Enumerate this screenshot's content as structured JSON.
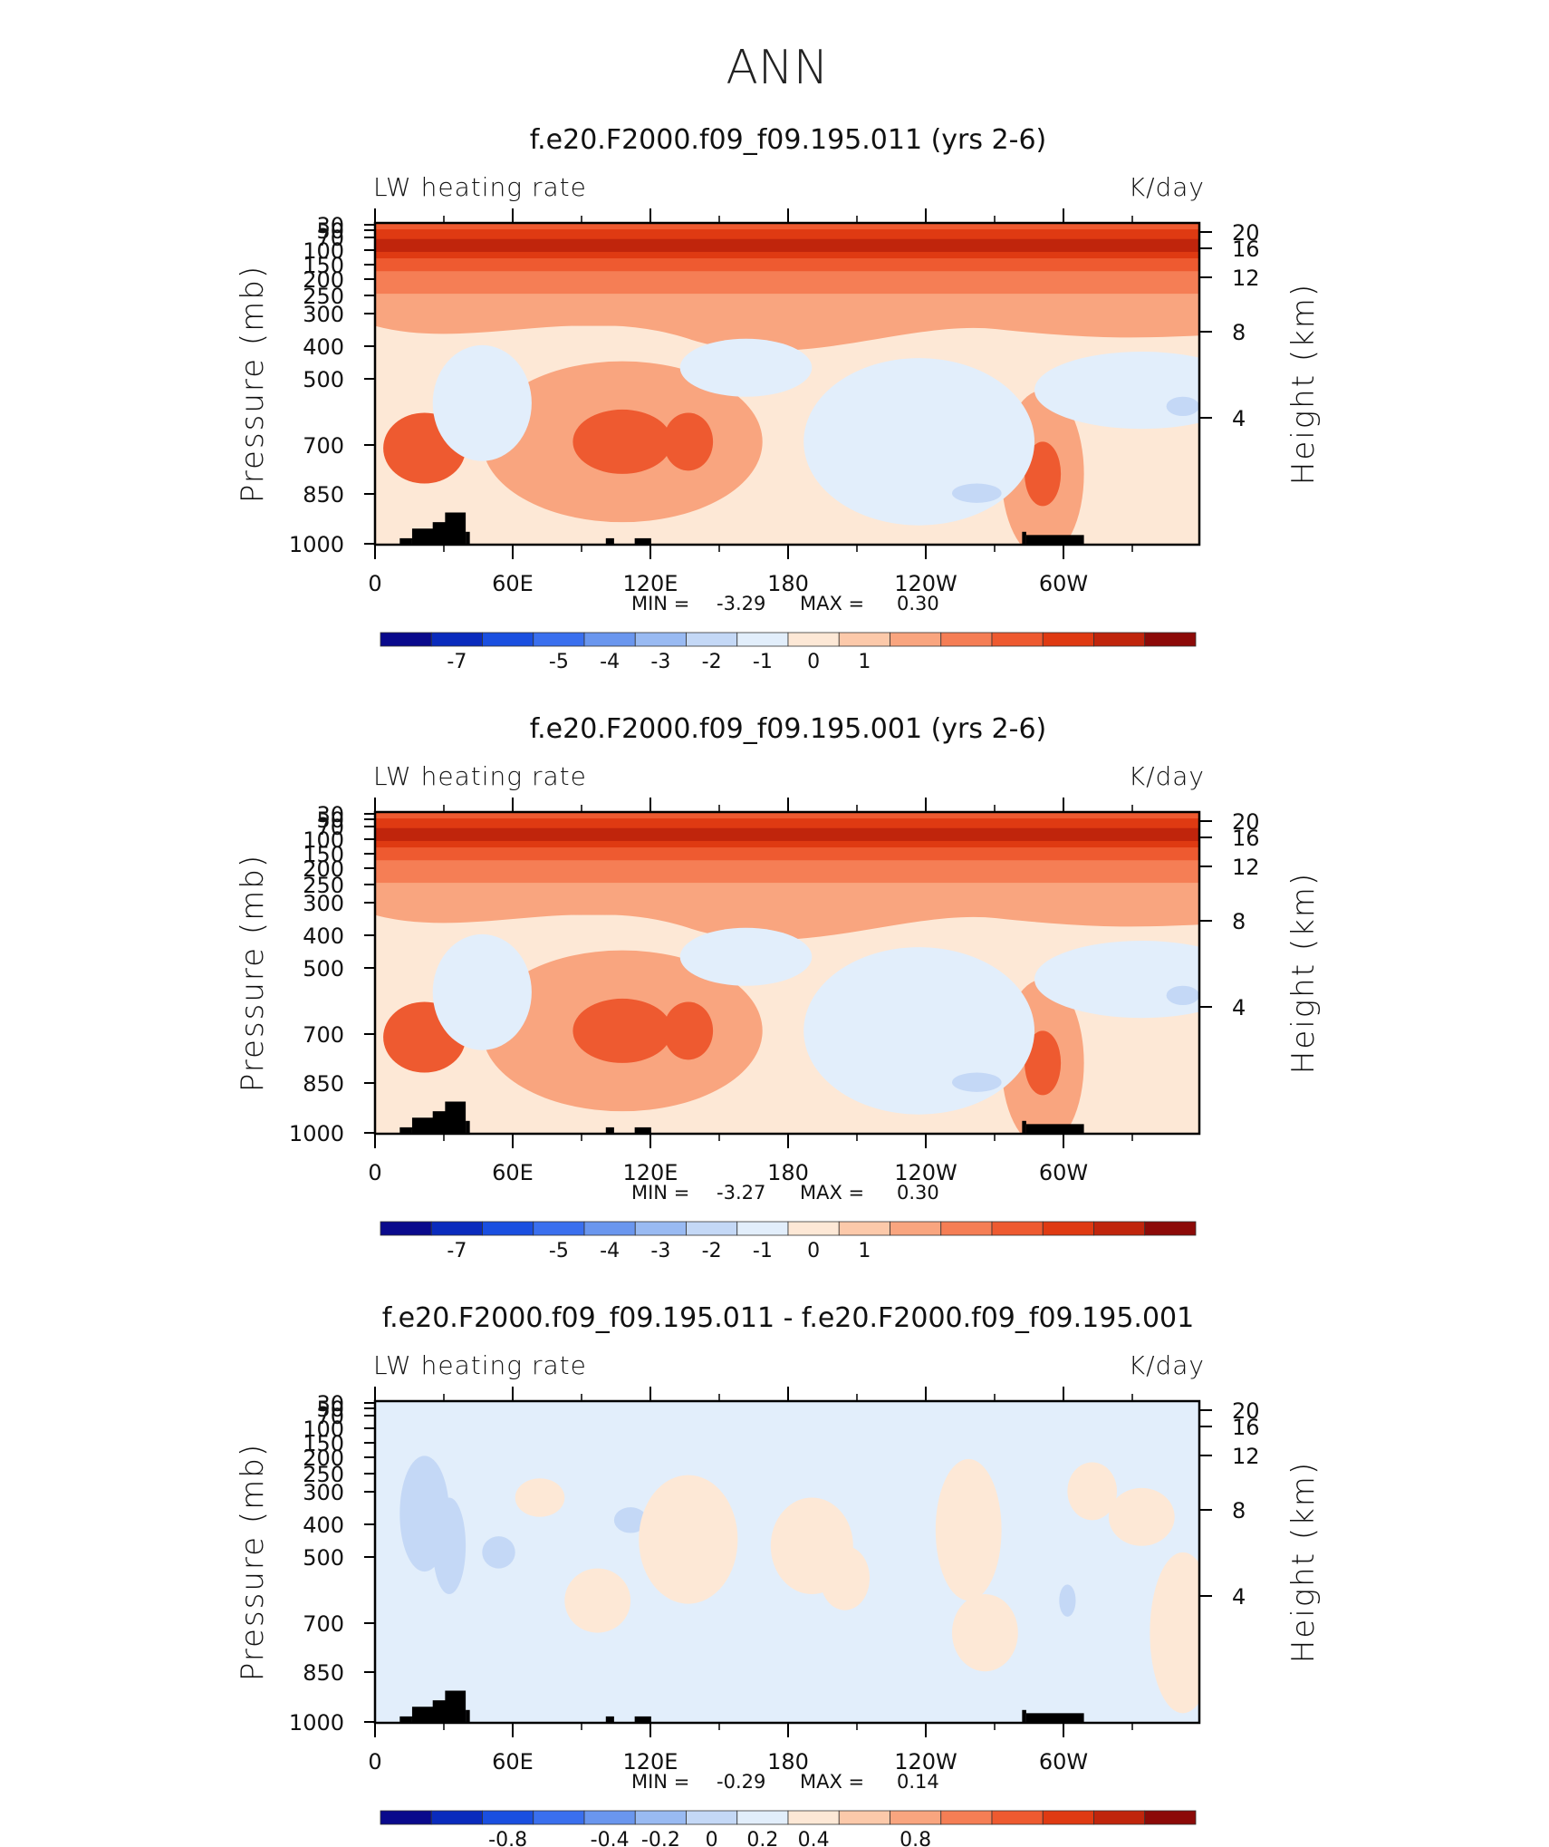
{
  "figure": {
    "title": "ANN"
  },
  "chart_data": [
    {
      "type": "heatmap",
      "title": "f.e20.F2000.f09_f09.195.011 (yrs 2-6)",
      "left_label": "LW heating rate",
      "right_label": "K/day",
      "xlabel": "",
      "ylabel": "Pressure (mb)",
      "ylabel_right": "Height (km)",
      "x_ticks": [
        "0",
        "60E",
        "120E",
        "180",
        "120W",
        "60W"
      ],
      "y_ticks": [
        "30",
        "50",
        "70",
        "100",
        "150",
        "200",
        "250",
        "300",
        "400",
        "500",
        "700",
        "850",
        "1000"
      ],
      "y_ticks_right": [
        "20",
        "16",
        "12",
        "8",
        "4"
      ],
      "stats": {
        "min_label": "MIN =",
        "min": "-3.29",
        "max_label": "MAX =",
        "max": "0.30"
      },
      "colorbar_labels": [
        "-7",
        "-5",
        "-4",
        "-3",
        "-2",
        "-1",
        "0",
        "1"
      ],
      "colors": [
        "#0a0a8c",
        "#0a2bbd",
        "#1a4fe0",
        "#3a6fee",
        "#6a96ee",
        "#99baf2",
        "#c4d8f6",
        "#e2eefb",
        "#fde8d6",
        "#fcc9aa",
        "#f9a57f",
        "#f57e55",
        "#ee5a30",
        "#df3a12",
        "#c0250c",
        "#8c0a08"
      ]
    },
    {
      "type": "heatmap",
      "title": "f.e20.F2000.f09_f09.195.001 (yrs 2-6)",
      "left_label": "LW heating rate",
      "right_label": "K/day",
      "xlabel": "",
      "ylabel": "Pressure (mb)",
      "ylabel_right": "Height (km)",
      "x_ticks": [
        "0",
        "60E",
        "120E",
        "180",
        "120W",
        "60W"
      ],
      "y_ticks": [
        "30",
        "50",
        "70",
        "100",
        "150",
        "200",
        "250",
        "300",
        "400",
        "500",
        "700",
        "850",
        "1000"
      ],
      "y_ticks_right": [
        "20",
        "16",
        "12",
        "8",
        "4"
      ],
      "stats": {
        "min_label": "MIN =",
        "min": "-3.27",
        "max_label": "MAX =",
        "max": "0.30"
      },
      "colorbar_labels": [
        "-7",
        "-5",
        "-4",
        "-3",
        "-2",
        "-1",
        "0",
        "1"
      ],
      "colors": [
        "#0a0a8c",
        "#0a2bbd",
        "#1a4fe0",
        "#3a6fee",
        "#6a96ee",
        "#99baf2",
        "#c4d8f6",
        "#e2eefb",
        "#fde8d6",
        "#fcc9aa",
        "#f9a57f",
        "#f57e55",
        "#ee5a30",
        "#df3a12",
        "#c0250c",
        "#8c0a08"
      ]
    },
    {
      "type": "heatmap",
      "title": "f.e20.F2000.f09_f09.195.011 - f.e20.F2000.f09_f09.195.001",
      "left_label": "LW heating rate",
      "right_label": "K/day",
      "xlabel": "",
      "ylabel": "Pressure (mb)",
      "ylabel_right": "Height (km)",
      "x_ticks": [
        "0",
        "60E",
        "120E",
        "180",
        "120W",
        "60W"
      ],
      "y_ticks": [
        "30",
        "50",
        "70",
        "100",
        "150",
        "200",
        "250",
        "300",
        "400",
        "500",
        "700",
        "850",
        "1000"
      ],
      "y_ticks_right": [
        "20",
        "16",
        "12",
        "8",
        "4"
      ],
      "stats": {
        "min_label": "MIN =",
        "min": "-0.29",
        "max_label": "MAX =",
        "max": "0.14"
      },
      "colorbar_labels": [
        "-0.8",
        "-0.4",
        "-0.2",
        "0",
        "0.2",
        "0.4",
        "0.8"
      ],
      "colors": [
        "#0a0a8c",
        "#0a2bbd",
        "#1a4fe0",
        "#3a6fee",
        "#6a96ee",
        "#99baf2",
        "#c4d8f6",
        "#e2eefb",
        "#fde8d6",
        "#fcc9aa",
        "#f9a57f",
        "#f57e55",
        "#ee5a30",
        "#df3a12",
        "#c0250c",
        "#8c0a08"
      ]
    }
  ]
}
